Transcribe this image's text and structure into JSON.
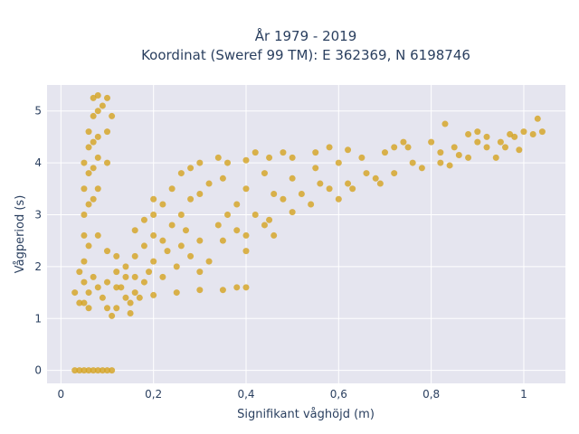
{
  "chart_data": {
    "type": "scatter",
    "title_lines": [
      "År 1979 - 2019",
      "Koordinat (Sweref 99 TM): E 362369, N 6198746"
    ],
    "xlabel": "Signifikant våghöjd (m)",
    "ylabel": "Vågperiod (s)",
    "xlim": [
      -0.03,
      1.09
    ],
    "ylim": [
      -0.25,
      5.5
    ],
    "xticks": [
      0,
      0.2,
      0.4,
      0.6,
      0.8,
      1
    ],
    "xtick_labels": [
      "0",
      "0,2",
      "0,4",
      "0,6",
      "0,8",
      "1"
    ],
    "yticks": [
      0,
      1,
      2,
      3,
      4,
      5
    ],
    "ytick_labels": [
      "0",
      "1",
      "2",
      "3",
      "4",
      "5"
    ],
    "grid": true,
    "marker_color": "#d4a21f",
    "background_color": "#e5e5ef",
    "series": [
      {
        "values_description": "dense point cloud approximated by samples",
        "points": [
          [
            0.03,
            0
          ],
          [
            0.04,
            0
          ],
          [
            0.05,
            0
          ],
          [
            0.06,
            0
          ],
          [
            0.07,
            0
          ],
          [
            0.08,
            0
          ],
          [
            0.09,
            0
          ],
          [
            0.1,
            0
          ],
          [
            0.11,
            0
          ],
          [
            0.05,
            1.3
          ],
          [
            0.05,
            1.7
          ],
          [
            0.05,
            2.1
          ],
          [
            0.05,
            2.6
          ],
          [
            0.05,
            3.0
          ],
          [
            0.05,
            3.5
          ],
          [
            0.05,
            4.0
          ],
          [
            0.06,
            2.4
          ],
          [
            0.06,
            3.2
          ],
          [
            0.06,
            3.8
          ],
          [
            0.06,
            4.3
          ],
          [
            0.06,
            4.6
          ],
          [
            0.07,
            3.3
          ],
          [
            0.07,
            3.9
          ],
          [
            0.07,
            4.4
          ],
          [
            0.07,
            4.9
          ],
          [
            0.08,
            3.5
          ],
          [
            0.08,
            4.1
          ],
          [
            0.08,
            4.5
          ],
          [
            0.08,
            5.0
          ],
          [
            0.09,
            5.1
          ],
          [
            0.07,
            5.25
          ],
          [
            0.08,
            5.3
          ],
          [
            0.1,
            5.25
          ],
          [
            0.1,
            4.6
          ],
          [
            0.1,
            4.0
          ],
          [
            0.11,
            4.9
          ],
          [
            0.04,
            1.9
          ],
          [
            0.03,
            1.5
          ],
          [
            0.04,
            1.3
          ],
          [
            0.06,
            1.5
          ],
          [
            0.08,
            1.6
          ],
          [
            0.1,
            1.7
          ],
          [
            0.12,
            1.6
          ],
          [
            0.14,
            1.4
          ],
          [
            0.1,
            1.2
          ],
          [
            0.12,
            1.2
          ],
          [
            0.15,
            1.3
          ],
          [
            0.17,
            1.4
          ],
          [
            0.2,
            1.45
          ],
          [
            0.25,
            1.5
          ],
          [
            0.3,
            1.55
          ],
          [
            0.35,
            1.55
          ],
          [
            0.38,
            1.6
          ],
          [
            0.4,
            1.6
          ],
          [
            0.12,
            1.9
          ],
          [
            0.14,
            2.0
          ],
          [
            0.16,
            2.2
          ],
          [
            0.18,
            2.4
          ],
          [
            0.2,
            2.6
          ],
          [
            0.2,
            3.0
          ],
          [
            0.22,
            2.5
          ],
          [
            0.22,
            3.2
          ],
          [
            0.24,
            2.8
          ],
          [
            0.24,
            3.5
          ],
          [
            0.26,
            3.0
          ],
          [
            0.26,
            3.8
          ],
          [
            0.28,
            3.3
          ],
          [
            0.28,
            3.9
          ],
          [
            0.3,
            2.5
          ],
          [
            0.3,
            3.4
          ],
          [
            0.3,
            4.0
          ],
          [
            0.32,
            3.6
          ],
          [
            0.34,
            2.8
          ],
          [
            0.35,
            3.7
          ],
          [
            0.36,
            4.0
          ],
          [
            0.38,
            3.2
          ],
          [
            0.4,
            3.5
          ],
          [
            0.4,
            4.05
          ],
          [
            0.42,
            3.0
          ],
          [
            0.44,
            3.8
          ],
          [
            0.45,
            4.1
          ],
          [
            0.48,
            3.3
          ],
          [
            0.5,
            3.7
          ],
          [
            0.5,
            4.1
          ],
          [
            0.52,
            3.4
          ],
          [
            0.55,
            3.9
          ],
          [
            0.55,
            4.2
          ],
          [
            0.58,
            3.5
          ],
          [
            0.6,
            4.0
          ],
          [
            0.62,
            3.6
          ],
          [
            0.65,
            4.1
          ],
          [
            0.68,
            3.7
          ],
          [
            0.7,
            4.2
          ],
          [
            0.72,
            3.8
          ],
          [
            0.75,
            4.3
          ],
          [
            0.78,
            3.9
          ],
          [
            0.8,
            4.4
          ],
          [
            0.82,
            4.0
          ],
          [
            0.85,
            4.3
          ],
          [
            0.88,
            4.1
          ],
          [
            0.9,
            4.4
          ],
          [
            0.92,
            4.3
          ],
          [
            0.95,
            4.4
          ],
          [
            0.98,
            4.5
          ],
          [
            1.0,
            4.6
          ],
          [
            1.02,
            4.55
          ],
          [
            1.03,
            4.85
          ],
          [
            1.04,
            4.6
          ],
          [
            0.9,
            4.6
          ],
          [
            0.83,
            4.75
          ],
          [
            0.88,
            4.55
          ],
          [
            0.74,
            4.4
          ],
          [
            0.69,
            3.6
          ],
          [
            0.63,
            3.5
          ],
          [
            0.45,
            2.9
          ],
          [
            0.4,
            2.6
          ],
          [
            0.35,
            2.5
          ],
          [
            0.28,
            2.2
          ],
          [
            0.25,
            2.0
          ],
          [
            0.22,
            1.8
          ],
          [
            0.18,
            1.7
          ],
          [
            0.16,
            1.5
          ],
          [
            0.14,
            1.8
          ],
          [
            0.12,
            2.2
          ],
          [
            0.1,
            2.3
          ],
          [
            0.08,
            2.6
          ],
          [
            0.3,
            1.9
          ],
          [
            0.32,
            2.1
          ],
          [
            0.2,
            2.1
          ],
          [
            0.26,
            2.4
          ],
          [
            0.36,
            3.0
          ],
          [
            0.46,
            3.4
          ],
          [
            0.56,
            3.6
          ],
          [
            0.66,
            3.8
          ],
          [
            0.76,
            4.0
          ],
          [
            0.86,
            4.15
          ],
          [
            0.96,
            4.3
          ],
          [
            0.48,
            4.2
          ],
          [
            0.58,
            4.3
          ],
          [
            0.42,
            4.2
          ],
          [
            0.34,
            4.1
          ],
          [
            0.62,
            4.25
          ],
          [
            0.72,
            4.3
          ],
          [
            0.82,
            4.2
          ],
          [
            0.54,
            3.2
          ],
          [
            0.6,
            3.3
          ],
          [
            0.5,
            3.05
          ],
          [
            0.44,
            2.8
          ],
          [
            0.38,
            2.7
          ],
          [
            0.27,
            2.7
          ],
          [
            0.23,
            2.3
          ],
          [
            0.19,
            1.9
          ],
          [
            0.16,
            1.8
          ],
          [
            0.13,
            1.6
          ],
          [
            0.09,
            1.4
          ],
          [
            0.07,
            1.8
          ],
          [
            0.06,
            1.2
          ],
          [
            0.15,
            1.1
          ],
          [
            0.11,
            1.05
          ],
          [
            0.18,
            2.9
          ],
          [
            0.2,
            3.3
          ],
          [
            0.16,
            2.7
          ],
          [
            0.4,
            2.3
          ],
          [
            0.46,
            2.6
          ],
          [
            0.84,
            3.95
          ],
          [
            0.94,
            4.1
          ],
          [
            0.99,
            4.25
          ],
          [
            0.92,
            4.5
          ],
          [
            0.97,
            4.55
          ]
        ]
      }
    ]
  }
}
